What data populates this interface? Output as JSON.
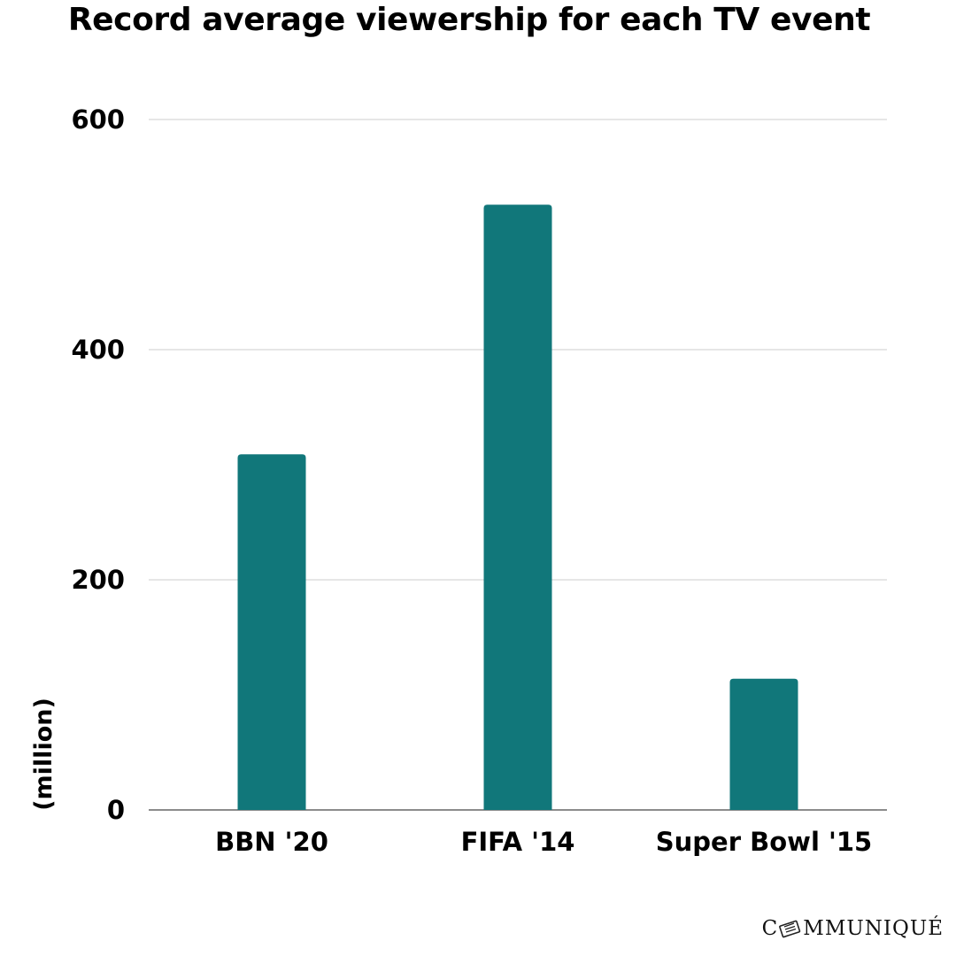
{
  "chart_data": {
    "type": "bar",
    "title": "Record average viewership for each TV event",
    "ylabel": "(million)",
    "xlabel": "",
    "categories": [
      "BBN '20",
      "FIFA '14",
      "Super Bowl '15"
    ],
    "values": [
      309,
      526,
      114
    ],
    "ylim": [
      0,
      600
    ],
    "yticks": [
      0,
      200,
      400,
      600
    ],
    "grid": true,
    "bar_color": "#11777A"
  },
  "brand": {
    "prefix": "C",
    "suffix": "MMUNIQUÉ",
    "icon": "newspaper-icon"
  }
}
